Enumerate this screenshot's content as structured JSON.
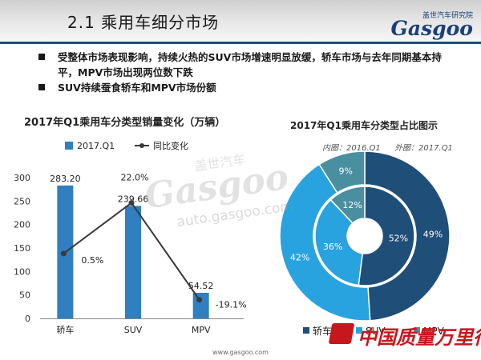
{
  "header": {
    "title": "2.1   乘用车细分市场",
    "logo_top": "盖世汽车研究院",
    "logo_brand": "Gasgoo"
  },
  "bullets": [
    "受整体市场表现影响，持续火热的SUV市场增速明显放缓，轿车市场与去年同期基本持平，MPV市场出现两位数下跌",
    "SUV持续蚕食轿车和MPV市场份额"
  ],
  "chart_data": [
    {
      "type": "bar",
      "title": "2017年Q1乘用车分类型销量变化（万辆）",
      "categories": [
        "轿车",
        "SUV",
        "MPV"
      ],
      "series": [
        {
          "name": "2017.Q1",
          "kind": "bar",
          "values": [
            283.2,
            239.66,
            54.52
          ],
          "labels": [
            "283.20",
            "239.66",
            "54.52"
          ],
          "color": "#2f7fc1"
        },
        {
          "name": "同比变化",
          "kind": "line",
          "values": [
            0.5,
            22.0,
            -19.1
          ],
          "labels": [
            "0.5%",
            "22.0%",
            "-19.1%"
          ],
          "color": "#3a3a3a"
        }
      ],
      "ylim": [
        0,
        300
      ],
      "yticks": [
        "0",
        "50",
        "100",
        "150",
        "200",
        "250",
        "300"
      ],
      "xlabel": "",
      "ylabel": "",
      "grid": false,
      "legend": "top-left"
    },
    {
      "type": "pie",
      "title": "2017年Q1乘用车分类型占比图示",
      "subtitle_inner": "内圈：2016.Q1",
      "subtitle_outer": "外圈：2017.Q1",
      "categories": [
        "轿车",
        "SUV",
        "MPV"
      ],
      "colors": [
        "#1f4e79",
        "#29a3e0",
        "#4a8fa0"
      ],
      "series": [
        {
          "ring": "outer",
          "values": [
            49,
            42,
            9
          ],
          "labels": [
            "49%",
            "42%",
            "9%"
          ]
        },
        {
          "ring": "inner",
          "values": [
            52,
            36,
            12
          ],
          "labels": [
            "52%",
            "36%",
            "12%"
          ]
        }
      ],
      "legend": "bottom"
    }
  ],
  "watermark": {
    "top": "盖世汽车",
    "brand": "Gasgoo",
    "url": "auto.gasgoo.com"
  },
  "footer": {
    "url": "www.gasgoo.com"
  },
  "stamp": {
    "text": "中国质量万里行"
  }
}
